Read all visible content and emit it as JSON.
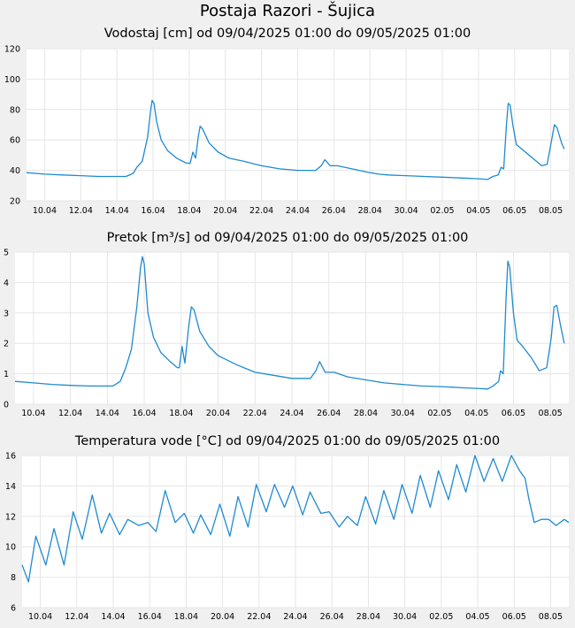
{
  "page_title": "Postaja Razori - Šujica",
  "chart_data": [
    {
      "type": "line",
      "title": "Vodostaj [cm] od 09/04/2025 01:00 do 09/05/2025 01:00",
      "ylim": [
        20,
        120
      ],
      "yticks": [
        "20",
        "40",
        "60",
        "80",
        "100",
        "120"
      ],
      "xlim": [
        0,
        30
      ],
      "xticks": [
        {
          "d": 1.0,
          "label": "10.04"
        },
        {
          "d": 3.0,
          "label": "12.04"
        },
        {
          "d": 5.0,
          "label": "14.04"
        },
        {
          "d": 7.0,
          "label": "16.04"
        },
        {
          "d": 9.0,
          "label": "18.04"
        },
        {
          "d": 11.0,
          "label": "20.04"
        },
        {
          "d": 13.0,
          "label": "22.04"
        },
        {
          "d": 15.0,
          "label": "24.04"
        },
        {
          "d": 17.0,
          "label": "26.04"
        },
        {
          "d": 19.0,
          "label": "28.04"
        },
        {
          "d": 21.0,
          "label": "30.04"
        },
        {
          "d": 23.0,
          "label": "02.05"
        },
        {
          "d": 25.0,
          "label": "04.05"
        },
        {
          "d": 27.0,
          "label": "06.05"
        },
        {
          "d": 29.0,
          "label": "08.05"
        }
      ],
      "grid": true,
      "series_color": "#1f8ad0",
      "points": [
        [
          0,
          38.5
        ],
        [
          0.5,
          38
        ],
        [
          1,
          37.5
        ],
        [
          2,
          37
        ],
        [
          3,
          36.5
        ],
        [
          4,
          36
        ],
        [
          5.5,
          36
        ],
        [
          5.9,
          38
        ],
        [
          6.1,
          42
        ],
        [
          6.4,
          46
        ],
        [
          6.7,
          62
        ],
        [
          6.85,
          78
        ],
        [
          6.95,
          86
        ],
        [
          7.05,
          84
        ],
        [
          7.2,
          72
        ],
        [
          7.45,
          60
        ],
        [
          7.8,
          53
        ],
        [
          8.3,
          48
        ],
        [
          8.8,
          45
        ],
        [
          9.05,
          44.5
        ],
        [
          9.2,
          52
        ],
        [
          9.35,
          48
        ],
        [
          9.5,
          62
        ],
        [
          9.6,
          69
        ],
        [
          9.75,
          67
        ],
        [
          10.1,
          58
        ],
        [
          10.6,
          52
        ],
        [
          11.2,
          48
        ],
        [
          12,
          46
        ],
        [
          13,
          43
        ],
        [
          14,
          41
        ],
        [
          15,
          40
        ],
        [
          16,
          40
        ],
        [
          16.3,
          43
        ],
        [
          16.5,
          47
        ],
        [
          16.8,
          43
        ],
        [
          17.2,
          43
        ],
        [
          18,
          41
        ],
        [
          19,
          38.5
        ],
        [
          19.5,
          37.5
        ],
        [
          20,
          37
        ],
        [
          21,
          36.5
        ],
        [
          22,
          36
        ],
        [
          23,
          35.5
        ],
        [
          24,
          35
        ],
        [
          25,
          34.5
        ],
        [
          25.5,
          34
        ],
        [
          25.8,
          36
        ],
        [
          26.1,
          37
        ],
        [
          26.25,
          42
        ],
        [
          26.4,
          41
        ],
        [
          26.55,
          70
        ],
        [
          26.65,
          84
        ],
        [
          26.75,
          83
        ],
        [
          26.9,
          70
        ],
        [
          27.1,
          57
        ],
        [
          27.5,
          53
        ],
        [
          28,
          48
        ],
        [
          28.5,
          43
        ],
        [
          28.8,
          44
        ],
        [
          29.05,
          60
        ],
        [
          29.2,
          70
        ],
        [
          29.35,
          68
        ],
        [
          29.6,
          58
        ],
        [
          29.75,
          54
        ]
      ]
    },
    {
      "type": "line",
      "title": "Pretok [m³/s] od 09/04/2025 01:00 do 09/05/2025 01:00",
      "ylim": [
        0,
        5
      ],
      "yticks": [
        "0",
        "1",
        "2",
        "3",
        "4",
        "5"
      ],
      "xlim": [
        0,
        30
      ],
      "xticks": [
        {
          "d": 1.0,
          "label": "10.04"
        },
        {
          "d": 3.0,
          "label": "12.04"
        },
        {
          "d": 5.0,
          "label": "14.04"
        },
        {
          "d": 7.0,
          "label": "16.04"
        },
        {
          "d": 9.0,
          "label": "18.04"
        },
        {
          "d": 11.0,
          "label": "20.04"
        },
        {
          "d": 13.0,
          "label": "22.04"
        },
        {
          "d": 15.0,
          "label": "24.04"
        },
        {
          "d": 17.0,
          "label": "26.04"
        },
        {
          "d": 19.0,
          "label": "28.04"
        },
        {
          "d": 21.0,
          "label": "30.04"
        },
        {
          "d": 23.0,
          "label": "02.05"
        },
        {
          "d": 25.0,
          "label": "04.05"
        },
        {
          "d": 27.0,
          "label": "06.05"
        },
        {
          "d": 29.0,
          "label": "08.05"
        }
      ],
      "grid": true,
      "series_color": "#1f8ad0",
      "points": [
        [
          0,
          0.75
        ],
        [
          1,
          0.7
        ],
        [
          2,
          0.65
        ],
        [
          3,
          0.62
        ],
        [
          4,
          0.6
        ],
        [
          5.3,
          0.6
        ],
        [
          5.7,
          0.75
        ],
        [
          6.0,
          1.2
        ],
        [
          6.3,
          1.8
        ],
        [
          6.6,
          3.2
        ],
        [
          6.8,
          4.5
        ],
        [
          6.9,
          4.85
        ],
        [
          7.0,
          4.6
        ],
        [
          7.2,
          3.0
        ],
        [
          7.5,
          2.2
        ],
        [
          7.9,
          1.7
        ],
        [
          8.4,
          1.4
        ],
        [
          8.8,
          1.2
        ],
        [
          8.9,
          1.2
        ],
        [
          9.05,
          1.9
        ],
        [
          9.2,
          1.35
        ],
        [
          9.4,
          2.5
        ],
        [
          9.55,
          3.2
        ],
        [
          9.7,
          3.1
        ],
        [
          10.0,
          2.4
        ],
        [
          10.5,
          1.9
        ],
        [
          11,
          1.6
        ],
        [
          12,
          1.3
        ],
        [
          13,
          1.05
        ],
        [
          14,
          0.95
        ],
        [
          15,
          0.85
        ],
        [
          16,
          0.85
        ],
        [
          16.3,
          1.1
        ],
        [
          16.5,
          1.4
        ],
        [
          16.8,
          1.05
        ],
        [
          17.3,
          1.05
        ],
        [
          18,
          0.9
        ],
        [
          19,
          0.8
        ],
        [
          20,
          0.7
        ],
        [
          21,
          0.65
        ],
        [
          22,
          0.6
        ],
        [
          23,
          0.58
        ],
        [
          24,
          0.55
        ],
        [
          25,
          0.52
        ],
        [
          25.6,
          0.5
        ],
        [
          25.9,
          0.6
        ],
        [
          26.2,
          0.75
        ],
        [
          26.3,
          1.1
        ],
        [
          26.45,
          1.0
        ],
        [
          26.6,
          3.5
        ],
        [
          26.7,
          4.7
        ],
        [
          26.8,
          4.5
        ],
        [
          27.0,
          3.0
        ],
        [
          27.2,
          2.1
        ],
        [
          27.5,
          1.9
        ],
        [
          28,
          1.5
        ],
        [
          28.4,
          1.1
        ],
        [
          28.8,
          1.2
        ],
        [
          29.05,
          2.2
        ],
        [
          29.2,
          3.2
        ],
        [
          29.35,
          3.25
        ],
        [
          29.55,
          2.6
        ],
        [
          29.75,
          2.0
        ]
      ]
    },
    {
      "type": "line",
      "title": "Temperatura vode [°C] od 09/04/2025 01:00 do 09/05/2025 01:00",
      "ylim": [
        6,
        16
      ],
      "yticks": [
        "6",
        "8",
        "10",
        "12",
        "14",
        "16"
      ],
      "xlim": [
        0,
        30
      ],
      "xticks": [
        {
          "d": 1.0,
          "label": "10.04"
        },
        {
          "d": 3.0,
          "label": "12.04"
        },
        {
          "d": 5.0,
          "label": "14.04"
        },
        {
          "d": 7.0,
          "label": "16.04"
        },
        {
          "d": 9.0,
          "label": "18.04"
        },
        {
          "d": 11.0,
          "label": "20.04"
        },
        {
          "d": 13.0,
          "label": "22.04"
        },
        {
          "d": 15.0,
          "label": "24.04"
        },
        {
          "d": 17.0,
          "label": "26.04"
        },
        {
          "d": 19.0,
          "label": "28.04"
        },
        {
          "d": 21.0,
          "label": "30.04"
        },
        {
          "d": 23.0,
          "label": "02.05"
        },
        {
          "d": 25.0,
          "label": "04.05"
        },
        {
          "d": 27.0,
          "label": "06.05"
        },
        {
          "d": 29.0,
          "label": "08.05"
        }
      ],
      "grid": true,
      "series_color": "#1f8ad0",
      "points": [
        [
          0,
          8.8
        ],
        [
          0.35,
          7.7
        ],
        [
          0.75,
          10.7
        ],
        [
          1.3,
          8.8
        ],
        [
          1.75,
          11.2
        ],
        [
          2.3,
          8.8
        ],
        [
          2.8,
          12.3
        ],
        [
          3.3,
          10.5
        ],
        [
          3.85,
          13.4
        ],
        [
          4.35,
          10.9
        ],
        [
          4.8,
          12.2
        ],
        [
          5.35,
          10.8
        ],
        [
          5.8,
          11.8
        ],
        [
          6.4,
          11.4
        ],
        [
          6.9,
          11.6
        ],
        [
          7.35,
          11.0
        ],
        [
          7.85,
          13.7
        ],
        [
          8.4,
          11.6
        ],
        [
          8.9,
          12.2
        ],
        [
          9.4,
          10.9
        ],
        [
          9.8,
          12.1
        ],
        [
          10.35,
          10.8
        ],
        [
          10.85,
          12.8
        ],
        [
          11.4,
          10.7
        ],
        [
          11.85,
          13.3
        ],
        [
          12.4,
          11.3
        ],
        [
          12.85,
          14.1
        ],
        [
          13.4,
          12.3
        ],
        [
          13.85,
          14.1
        ],
        [
          14.4,
          12.6
        ],
        [
          14.85,
          14.0
        ],
        [
          15.4,
          12.1
        ],
        [
          15.8,
          13.6
        ],
        [
          16.4,
          12.2
        ],
        [
          16.85,
          12.3
        ],
        [
          17.4,
          11.3
        ],
        [
          17.85,
          12.0
        ],
        [
          18.4,
          11.4
        ],
        [
          18.85,
          13.3
        ],
        [
          19.4,
          11.5
        ],
        [
          19.85,
          13.7
        ],
        [
          20.4,
          11.8
        ],
        [
          20.85,
          14.1
        ],
        [
          21.4,
          12.2
        ],
        [
          21.85,
          14.7
        ],
        [
          22.4,
          12.6
        ],
        [
          22.85,
          15.0
        ],
        [
          23.4,
          13.1
        ],
        [
          23.85,
          15.4
        ],
        [
          24.35,
          13.6
        ],
        [
          24.85,
          16.0
        ],
        [
          25.35,
          14.3
        ],
        [
          25.85,
          15.8
        ],
        [
          26.35,
          14.3
        ],
        [
          26.85,
          16.0
        ],
        [
          27.3,
          15.0
        ],
        [
          27.6,
          14.5
        ],
        [
          27.8,
          13.2
        ],
        [
          28.1,
          11.6
        ],
        [
          28.5,
          11.8
        ],
        [
          28.9,
          11.8
        ],
        [
          29.3,
          11.4
        ],
        [
          29.75,
          11.8
        ],
        [
          30,
          11.6
        ]
      ]
    }
  ]
}
